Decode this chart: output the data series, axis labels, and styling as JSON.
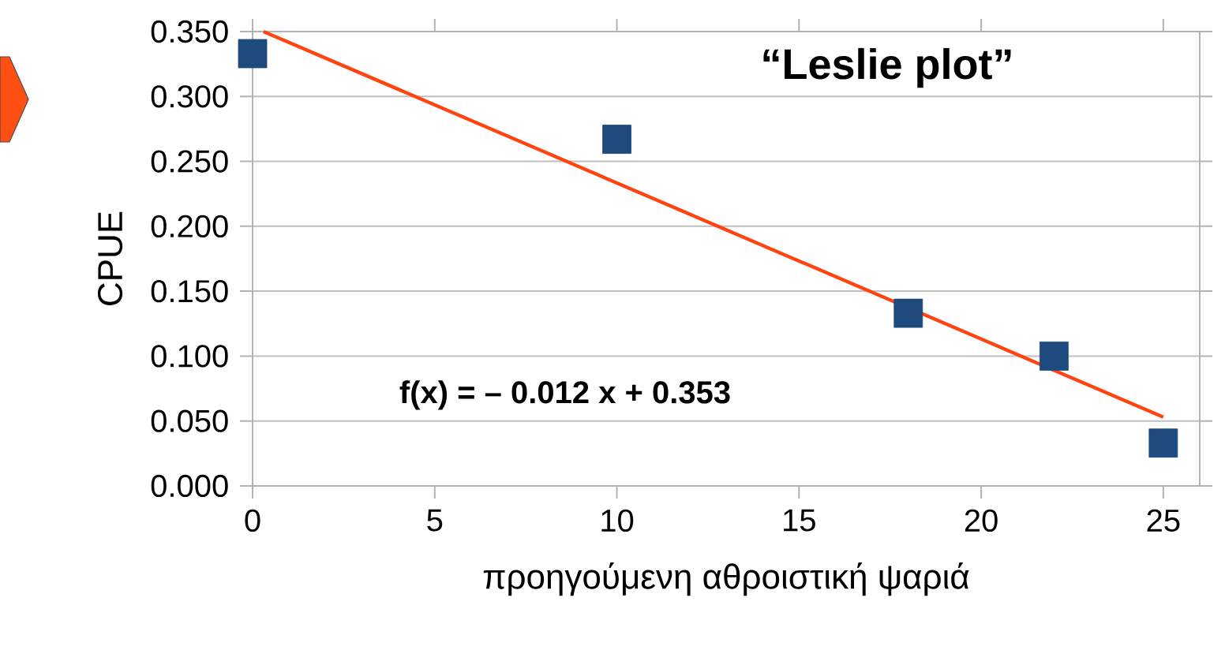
{
  "chart_data": {
    "type": "scatter",
    "title": "“Leslie plot”",
    "xlabel": "προηγούμενη αθροιστική ψαριά",
    "ylabel": "CPUE",
    "annotations": [
      "f(x) = – 0.012 x + 0.353"
    ],
    "series": [
      {
        "type": "scatter",
        "color": "#1f4a7e",
        "marker": "square",
        "x": [
          0,
          10,
          18,
          22,
          25
        ],
        "values": [
          0.333,
          0.267,
          0.133,
          0.1,
          0.033
        ]
      },
      {
        "type": "line",
        "color": "#ff4411",
        "marker": "none",
        "line_style": "solid",
        "x": [
          0.3,
          25
        ],
        "values": [
          0.35,
          0.053
        ]
      }
    ],
    "xlim": [
      0,
      26
    ],
    "ylim": [
      0,
      0.35
    ],
    "xticks": [
      0,
      5,
      10,
      15,
      20,
      25
    ],
    "yticks": [
      {
        "value": 0,
        "label": "0.000"
      },
      {
        "value": 0.05,
        "label": "0.050"
      },
      {
        "value": 0.1,
        "label": "0.100"
      },
      {
        "value": 0.15,
        "label": "0.150"
      },
      {
        "value": 0.2,
        "label": "0.200"
      },
      {
        "value": 0.25,
        "label": "0.250"
      },
      {
        "value": 0.3,
        "label": "0.300"
      },
      {
        "value": 0.35,
        "label": "0.350"
      }
    ],
    "grid": "y"
  }
}
